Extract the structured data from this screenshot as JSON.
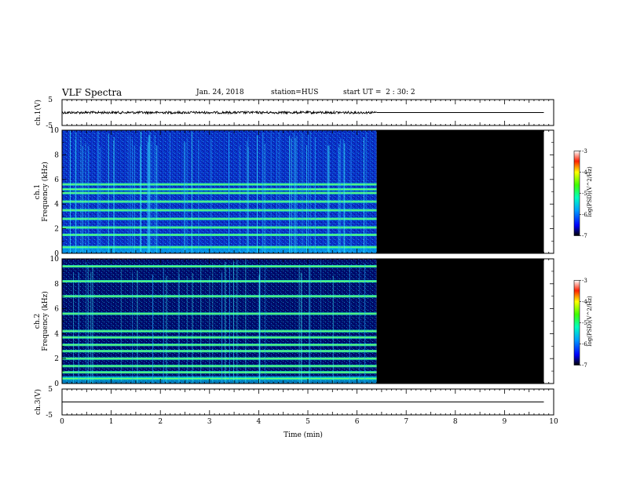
{
  "header": {
    "title": "VLF Spectra",
    "date": "Jan. 24, 2018",
    "station": "station=HUS",
    "start": "start UT =  2 : 30: 2"
  },
  "chart_data": [
    {
      "id": "ch1-waveform",
      "type": "line",
      "ylabel": "ch.1(V)",
      "ylim": [
        -5,
        5
      ],
      "yticks": [
        "5",
        "-5"
      ],
      "xlim": [
        0,
        10
      ],
      "data_end_min": 6.4,
      "series": [
        {
          "x": [
            0,
            6.4,
            9.8
          ],
          "y": [
            0,
            0,
            0
          ]
        }
      ]
    },
    {
      "id": "ch1-spectrogram",
      "type": "heatmap",
      "ylabel": [
        "ch.1",
        "Frequency (kHz)"
      ],
      "ylim": [
        0,
        10
      ],
      "yticks": [
        "0",
        "2",
        "4",
        "6",
        "8",
        "10"
      ],
      "xlim": [
        0,
        10
      ],
      "data_end_min": 6.4,
      "blank_end_min": 9.8,
      "harmonic_lines_khz": [
        0.5,
        1.5,
        2.1,
        2.8,
        3.5,
        4.2,
        4.9,
        5.2,
        5.6
      ],
      "colorbar": {
        "label": "log(PSD)(V^2/Hz)",
        "ticks": [
          "-3",
          "-4",
          "-5",
          "-6",
          "-7"
        ],
        "range": [
          -7,
          -3
        ]
      }
    },
    {
      "id": "ch2-spectrogram",
      "type": "heatmap",
      "ylabel": [
        "ch.2",
        "Frequency (kHz)"
      ],
      "ylim": [
        0,
        10
      ],
      "yticks": [
        "0",
        "2",
        "4",
        "6",
        "8",
        "10"
      ],
      "xlim": [
        0,
        10
      ],
      "data_end_min": 6.4,
      "blank_end_min": 9.8,
      "harmonic_lines_khz": [
        0.4,
        0.9,
        1.4,
        2.0,
        2.6,
        3.1,
        3.7,
        4.2,
        5.6,
        7.0,
        8.2,
        9.4
      ],
      "colorbar": {
        "label": "log(PSD)(V^2/Hz)",
        "ticks": [
          "-3",
          "-4",
          "-5",
          "-6",
          "-7"
        ],
        "range": [
          -7,
          -3
        ]
      }
    },
    {
      "id": "ch3-waveform",
      "type": "line",
      "ylabel": "ch.3(V)",
      "ylim": [
        -5,
        5
      ],
      "yticks": [
        "5",
        "-5"
      ],
      "xlim": [
        0,
        10
      ],
      "series": [
        {
          "x": [
            0,
            9.8
          ],
          "y": [
            0,
            0
          ]
        }
      ]
    }
  ],
  "x_axis": {
    "label": "Time (min)",
    "ticks": [
      "0",
      "1",
      "2",
      "3",
      "4",
      "5",
      "6",
      "7",
      "8",
      "9",
      "10"
    ]
  }
}
